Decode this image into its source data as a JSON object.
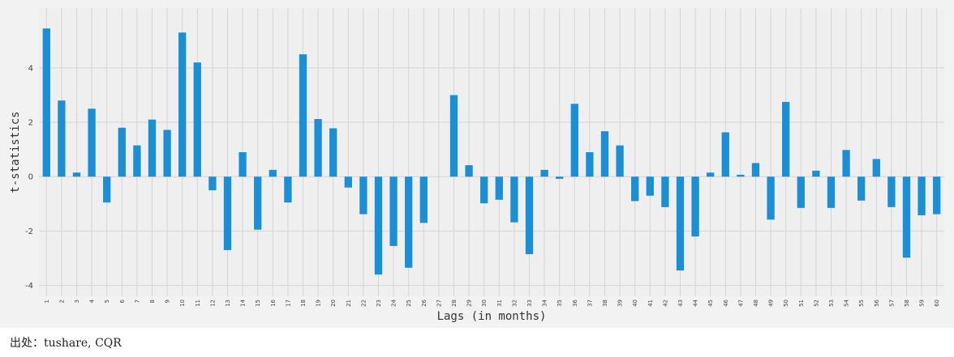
{
  "chart_data": {
    "type": "bar",
    "xlabel": "Lags (in months)",
    "ylabel": "t-statistics",
    "ylim": [
      -4.4,
      6.2
    ],
    "yticks": [
      -4,
      -2,
      0,
      2,
      4
    ],
    "grid": true,
    "colors": {
      "bar": "#1a8fd6",
      "plot_bg": "#efefef",
      "grid": "#d4d4d4",
      "page_bg": "#ffffff"
    },
    "categories": [
      "1",
      "2",
      "3",
      "4",
      "5",
      "6",
      "7",
      "8",
      "9",
      "10",
      "11",
      "12",
      "13",
      "14",
      "15",
      "16",
      "17",
      "18",
      "19",
      "20",
      "21",
      "22",
      "23",
      "24",
      "25",
      "26",
      "27",
      "28",
      "29",
      "30",
      "31",
      "32",
      "33",
      "34",
      "35",
      "36",
      "37",
      "38",
      "39",
      "40",
      "41",
      "42",
      "43",
      "44",
      "45",
      "46",
      "47",
      "48",
      "49",
      "50",
      "51",
      "52",
      "53",
      "54",
      "55",
      "56",
      "57",
      "58",
      "59",
      "60"
    ],
    "values": [
      5.45,
      2.8,
      0.15,
      2.5,
      -0.95,
      1.8,
      1.15,
      2.1,
      1.72,
      5.3,
      4.2,
      -0.5,
      -2.7,
      0.9,
      -1.95,
      0.25,
      -0.95,
      4.5,
      2.12,
      1.78,
      -0.4,
      -1.38,
      -3.6,
      -2.55,
      -3.35,
      -1.7,
      0.0,
      3.0,
      0.42,
      -0.98,
      -0.85,
      -1.68,
      -2.85,
      0.25,
      -0.08,
      2.68,
      0.9,
      1.67,
      1.15,
      -0.9,
      -0.7,
      -1.12,
      -3.45,
      -2.2,
      0.15,
      1.63,
      0.07,
      0.5,
      -1.58,
      2.75,
      -1.15,
      0.22,
      -1.15,
      0.98,
      -0.88,
      0.65,
      -1.12,
      -2.98,
      -1.42,
      -1.38
    ]
  },
  "source_text": "出处：tushare, CQR"
}
